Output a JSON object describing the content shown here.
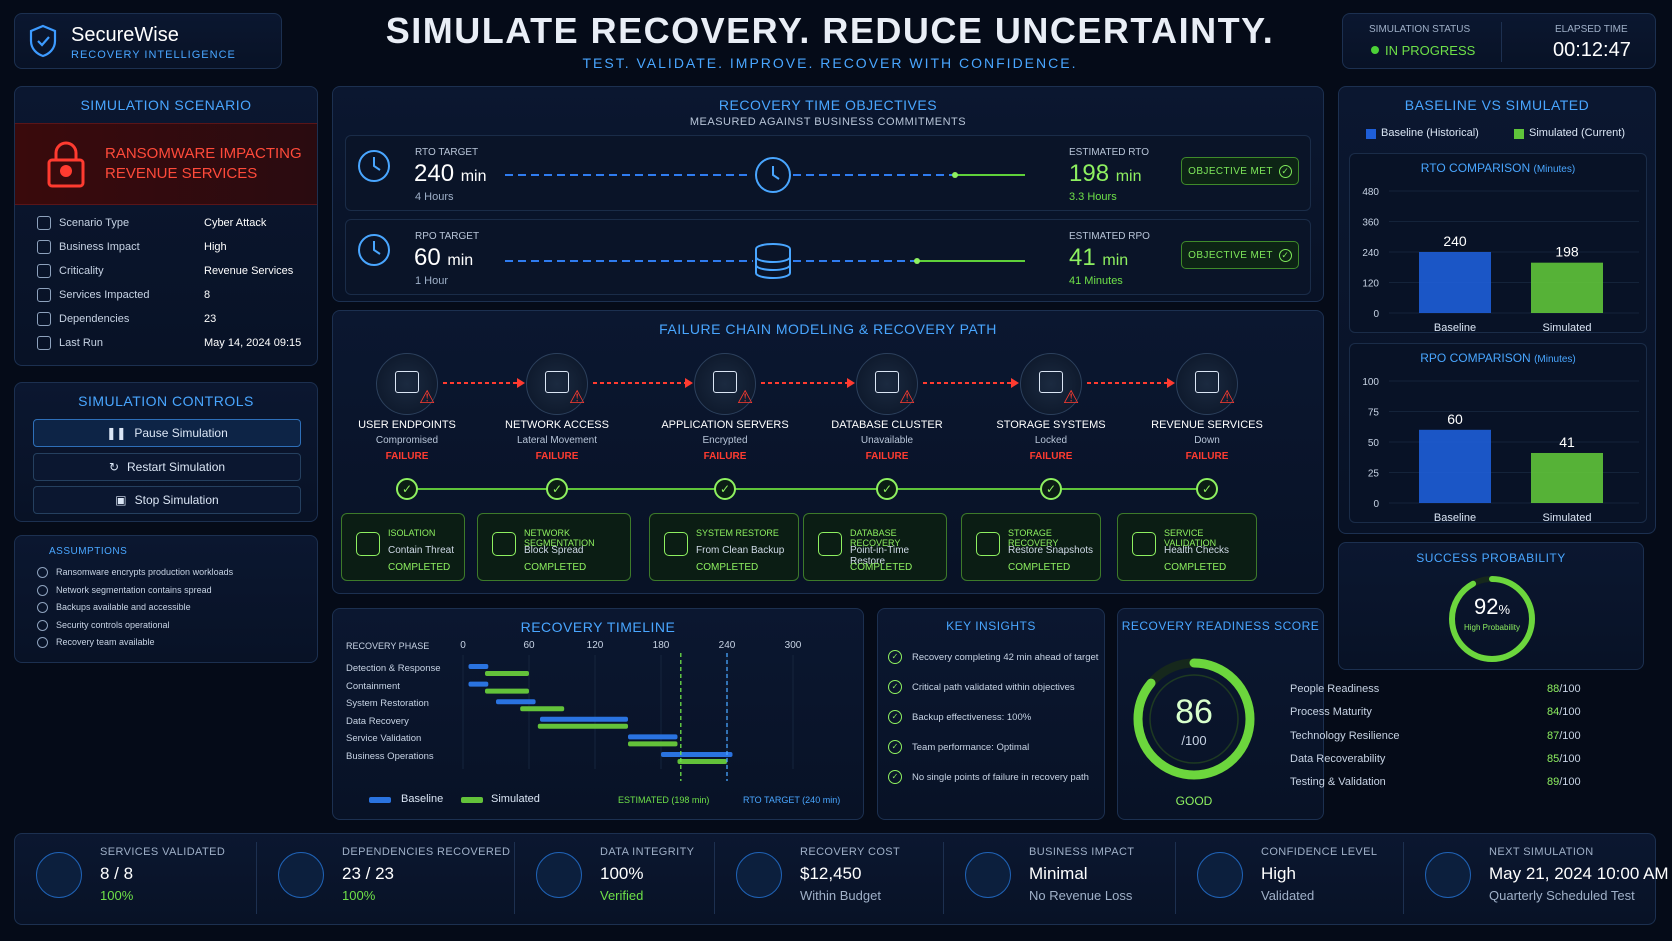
{
  "brand": {
    "name": "SecureWise",
    "tag": "RECOVERY INTELLIGENCE"
  },
  "header": {
    "title": "SIMULATE RECOVERY. REDUCE UNCERTAINTY.",
    "subtitle": "TEST. VALIDATE. IMPROVE. RECOVER WITH CONFIDENCE."
  },
  "status": {
    "label": "SIMULATION STATUS",
    "value": "IN PROGRESS",
    "elapsed_label": "ELAPSED TIME",
    "elapsed": "00:12:47"
  },
  "scenario": {
    "title": "SIMULATION SCENARIO",
    "banner": "RANSOMWARE IMPACTING REVENUE SERVICES",
    "banner1": "RANSOMWARE IMPACTING",
    "banner2": "REVENUE SERVICES",
    "rows": [
      {
        "label": "Scenario Type",
        "value": "Cyber Attack"
      },
      {
        "label": "Business Impact",
        "value": "High"
      },
      {
        "label": "Criticality",
        "value": "Revenue Services"
      },
      {
        "label": "Services Impacted",
        "value": "8"
      },
      {
        "label": "Dependencies",
        "value": "23"
      },
      {
        "label": "Last Run",
        "value": "May 14, 2024 09:15"
      }
    ]
  },
  "controls": {
    "title": "SIMULATION CONTROLS",
    "pause": "Pause Simulation",
    "restart": "Restart Simulation",
    "stop": "Stop Simulation"
  },
  "assumptions": {
    "title": "ASSUMPTIONS",
    "items": [
      "Ransomware encrypts production workloads",
      "Network segmentation contains spread",
      "Backups available and accessible",
      "Security controls operational",
      "Recovery team available"
    ]
  },
  "rto": {
    "title": "RECOVERY TIME OBJECTIVES",
    "subtitle": "MEASURED AGAINST BUSINESS COMMITMENTS",
    "rto_label": "RTO TARGET",
    "rto_val": "240",
    "unit": "min",
    "rto_sub": "4 Hours",
    "est_rto_label": "ESTIMATED RTO",
    "est_rto": "198",
    "est_rto_sub": "3.3 Hours",
    "rpo_label": "RPO TARGET",
    "rpo_val": "60",
    "rpo_sub": "1 Hour",
    "est_rpo_label": "ESTIMATED RPO",
    "est_rpo": "41",
    "est_rpo_sub": "41 Minutes",
    "met": "OBJECTIVE MET"
  },
  "chain": {
    "title": "FAILURE CHAIN MODELING & RECOVERY PATH",
    "failure": "FAILURE",
    "completed": "COMPLETED",
    "nodes": [
      {
        "t": "USER ENDPOINTS",
        "s": "Compromised"
      },
      {
        "t": "NETWORK ACCESS",
        "s": "Lateral Movement"
      },
      {
        "t": "APPLICATION SERVERS",
        "s": "Encrypted"
      },
      {
        "t": "DATABASE CLUSTER",
        "s": "Unavailable"
      },
      {
        "t": "STORAGE SYSTEMS",
        "s": "Locked"
      },
      {
        "t": "REVENUE SERVICES",
        "s": "Down"
      }
    ],
    "steps": [
      {
        "t": "ISOLATION",
        "s": "Contain Threat"
      },
      {
        "t": "NETWORK SEGMENTATION",
        "s": "Block Spread"
      },
      {
        "t": "SYSTEM RESTORE",
        "s": "From Clean Backup"
      },
      {
        "t": "DATABASE RECOVERY",
        "s": "Point-in-Time Restore"
      },
      {
        "t": "STORAGE RECOVERY",
        "s": "Restore Snapshots"
      },
      {
        "t": "SERVICE VALIDATION",
        "s": "Health Checks"
      }
    ]
  },
  "timeline": {
    "title": "RECOVERY TIMELINE",
    "phase_label": "RECOVERY PHASE",
    "ticks": [
      "0",
      "60",
      "120",
      "180",
      "240",
      "300"
    ],
    "phases": [
      "Detection & Response",
      "Containment",
      "System Restoration",
      "Data Recovery",
      "Service Validation",
      "Business Operations"
    ],
    "legend_b": "Baseline",
    "legend_s": "Simulated",
    "est": "ESTIMATED (198 min)",
    "target": "RTO TARGET (240 min)"
  },
  "insights": {
    "title": "KEY INSIGHTS",
    "items": [
      "Recovery completing 42 min ahead of target",
      "Critical path validated within objectives",
      "Backup effectiveness: 100%",
      "Team performance: Optimal",
      "No single points of failure in recovery path"
    ]
  },
  "readiness": {
    "title": "RECOVERY READINESS SCORE",
    "score": "86",
    "of": "/100",
    "grade": "GOOD",
    "score_frac": 0.86,
    "items": [
      {
        "l": "People Readiness",
        "v": "88",
        "o": "/100"
      },
      {
        "l": "Process Maturity",
        "v": "84",
        "o": "/100"
      },
      {
        "l": "Technology Resilience",
        "v": "87",
        "o": "/100"
      },
      {
        "l": "Data Recoverability",
        "v": "85",
        "o": "/100"
      },
      {
        "l": "Testing & Validation",
        "v": "89",
        "o": "/100"
      }
    ]
  },
  "compare": {
    "title": "BASELINE VS SIMULATED",
    "legend_b": "Baseline (Historical)",
    "legend_s": "Simulated (Current)",
    "rto_title": "RTO COMPARISON",
    "rpo_title": "RPO COMPARISON",
    "unit": "(Minutes)"
  },
  "success": {
    "title": "SUCCESS PROBABILITY",
    "value": "92",
    "pct": "%",
    "label": "High Probability",
    "frac": 0.92
  },
  "chart_data": [
    {
      "type": "bar",
      "title": "RTO COMPARISON (Minutes)",
      "categories": [
        "Baseline",
        "Simulated"
      ],
      "values": [
        240,
        198
      ],
      "ylim": [
        0,
        480
      ],
      "yticks": [
        "480",
        "360",
        "240",
        "120",
        "0"
      ],
      "colors": [
        "#1e5ed8",
        "#5fc43a"
      ]
    },
    {
      "type": "bar",
      "title": "RPO COMPARISON (Minutes)",
      "categories": [
        "Baseline",
        "Simulated"
      ],
      "values": [
        60,
        41
      ],
      "ylim": [
        0,
        100
      ],
      "yticks": [
        "100",
        "75",
        "50",
        "25",
        "0"
      ],
      "colors": [
        "#1e5ed8",
        "#5fc43a"
      ]
    }
  ],
  "timeline_data": {
    "baseline": [
      [
        5,
        23
      ],
      [
        5,
        23
      ],
      [
        30,
        66
      ],
      [
        70,
        150
      ],
      [
        150,
        195
      ],
      [
        180,
        245
      ]
    ],
    "simulated": [
      [
        20,
        60
      ],
      [
        20,
        60
      ],
      [
        52,
        92
      ],
      [
        68,
        150
      ],
      [
        150,
        195
      ],
      [
        195,
        240
      ]
    ],
    "est": 198,
    "target": 240,
    "max": 300
  },
  "stats": [
    {
      "t": "SERVICES VALIDATED",
      "v": "8 / 8",
      "s": "100%",
      "sc": "#6ee048"
    },
    {
      "t": "DEPENDENCIES RECOVERED",
      "v": "23 / 23",
      "s": "100%",
      "sc": "#6ee048"
    },
    {
      "t": "DATA INTEGRITY",
      "v": "100%",
      "s": "Verified",
      "sc": "#6ee048"
    },
    {
      "t": "RECOVERY COST",
      "v": "$12,450",
      "s": "Within Budget",
      "sc": "#9fb0c8"
    },
    {
      "t": "BUSINESS IMPACT",
      "v": "Minimal",
      "s": "No Revenue Loss",
      "sc": "#9fb0c8"
    },
    {
      "t": "CONFIDENCE LEVEL",
      "v": "High",
      "s": "Validated",
      "sc": "#9fb0c8"
    },
    {
      "t": "NEXT SIMULATION",
      "v": "May 21, 2024 10:00 AM",
      "s": "Quarterly Scheduled Test",
      "sc": "#9fb0c8"
    }
  ]
}
